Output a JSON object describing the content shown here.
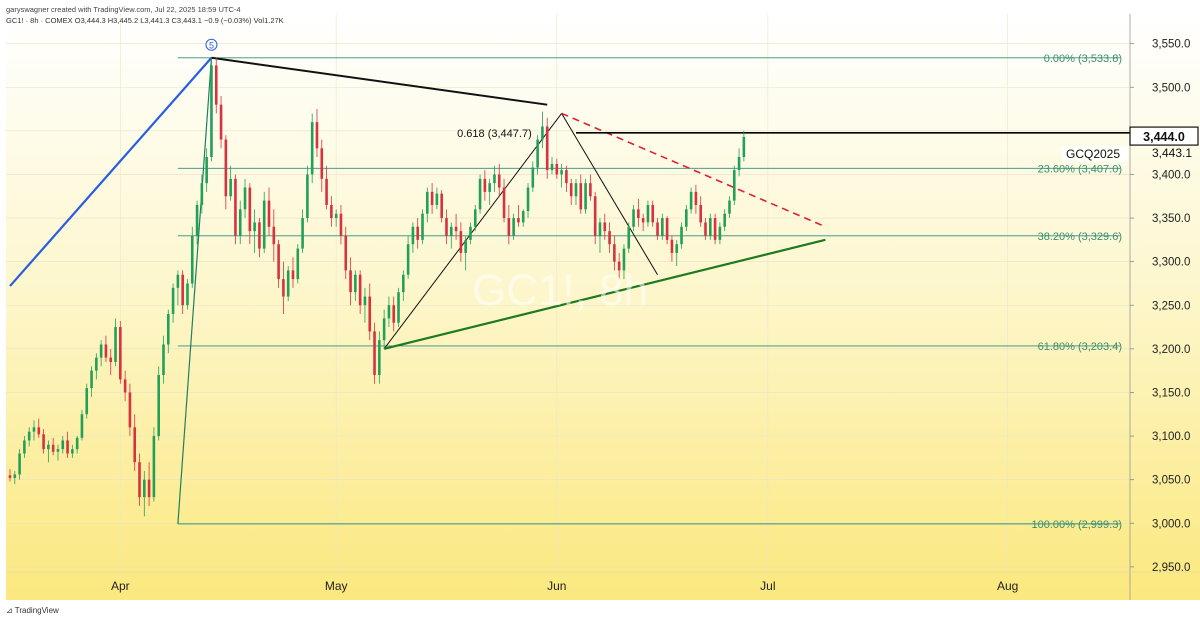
{
  "header": {
    "line1": "garyswagner created with TradingView.com, Jul 22, 2025 18:59 UTC-4",
    "line2": "GC1! · 8h · COMEX  O3,444.3  H3,445.2  L3,441.3  C3,443.1  −0.9 (−0.03%)  Vol1.27K"
  },
  "footer": {
    "logo": "TradingView"
  },
  "chart_data": {
    "type": "candlestick",
    "watermark": "GC1!, 8h",
    "price_axis": {
      "ticks": [
        "3,550.0",
        "3,500.0",
        "3,450.0",
        "3,400.0",
        "3,350.0",
        "3,300.0",
        "3,250.0",
        "3,200.0",
        "3,150.0",
        "3,100.0",
        "3,050.0",
        "3,000.0",
        "2,950.0"
      ],
      "tick_values": [
        3550,
        3500,
        3450,
        3400,
        3350,
        3300,
        3250,
        3200,
        3150,
        3100,
        3050,
        3000,
        2950
      ],
      "ylim": [
        2912,
        3584
      ],
      "last_price_label": "3,444.0",
      "last_price": 3444.0,
      "secondary_label": "3,443.1",
      "secondary_price": 3443.1,
      "contract_label": "GCQ2025"
    },
    "time_axis": {
      "labels": [
        "Apr",
        "May",
        "Jun",
        "Jul",
        "Aug"
      ],
      "label_bar_index": [
        23,
        68,
        114,
        158,
        208
      ],
      "total_bars": 232
    },
    "fibonacci": [
      {
        "label": "0.00% (3,533.8)",
        "price": 3533.8
      },
      {
        "label": "23.60% (3,407.0)",
        "price": 3407.0
      },
      {
        "label": "38.20% (3,329.6)",
        "price": 3329.6
      },
      {
        "label": "61.80% (3,203.4)",
        "price": 3203.4
      },
      {
        "label": "100.00% (2,999.3)",
        "price": 2999.3
      }
    ],
    "retracement_label": "0.618 (3,447.7)",
    "retracement_price": 3447.7,
    "wave_label": "5",
    "candles_ohlc": [
      [
        3055,
        3062,
        3048,
        3052
      ],
      [
        3052,
        3060,
        3045,
        3056
      ],
      [
        3056,
        3085,
        3050,
        3080
      ],
      [
        3080,
        3100,
        3075,
        3095
      ],
      [
        3095,
        3110,
        3088,
        3105
      ],
      [
        3105,
        3118,
        3095,
        3110
      ],
      [
        3110,
        3120,
        3098,
        3102
      ],
      [
        3102,
        3108,
        3080,
        3085
      ],
      [
        3085,
        3095,
        3070,
        3090
      ],
      [
        3090,
        3098,
        3078,
        3082
      ],
      [
        3082,
        3090,
        3072,
        3085
      ],
      [
        3085,
        3100,
        3080,
        3095
      ],
      [
        3095,
        3105,
        3075,
        3080
      ],
      [
        3080,
        3090,
        3075,
        3085
      ],
      [
        3085,
        3100,
        3080,
        3098
      ],
      [
        3098,
        3130,
        3095,
        3125
      ],
      [
        3125,
        3160,
        3120,
        3155
      ],
      [
        3155,
        3180,
        3145,
        3175
      ],
      [
        3175,
        3195,
        3165,
        3190
      ],
      [
        3190,
        3210,
        3180,
        3205
      ],
      [
        3205,
        3215,
        3185,
        3190
      ],
      [
        3190,
        3200,
        3170,
        3185
      ],
      [
        3185,
        3235,
        3180,
        3225
      ],
      [
        3225,
        3232,
        3160,
        3165
      ],
      [
        3165,
        3175,
        3140,
        3150
      ],
      [
        3150,
        3160,
        3100,
        3110
      ],
      [
        3110,
        3125,
        3060,
        3070
      ],
      [
        3070,
        3080,
        3020,
        3030
      ],
      [
        3030,
        3060,
        3008,
        3050
      ],
      [
        3050,
        3070,
        3020,
        3030
      ],
      [
        3030,
        3110,
        3025,
        3100
      ],
      [
        3100,
        3180,
        3095,
        3170
      ],
      [
        3170,
        3215,
        3160,
        3205
      ],
      [
        3205,
        3245,
        3195,
        3240
      ],
      [
        3240,
        3275,
        3230,
        3270
      ],
      [
        3270,
        3290,
        3250,
        3285
      ],
      [
        3285,
        3290,
        3240,
        3250
      ],
      [
        3250,
        3280,
        3245,
        3275
      ],
      [
        3275,
        3340,
        3270,
        3330
      ],
      [
        3330,
        3370,
        3320,
        3365
      ],
      [
        3365,
        3400,
        3355,
        3390
      ],
      [
        3390,
        3430,
        3380,
        3420
      ],
      [
        3420,
        3530,
        3415,
        3525
      ],
      [
        3525,
        3534,
        3470,
        3480
      ],
      [
        3480,
        3490,
        3430,
        3440
      ],
      [
        3440,
        3445,
        3360,
        3375
      ],
      [
        3375,
        3410,
        3370,
        3395
      ],
      [
        3395,
        3400,
        3320,
        3330
      ],
      [
        3330,
        3370,
        3320,
        3360
      ],
      [
        3360,
        3395,
        3350,
        3385
      ],
      [
        3385,
        3390,
        3320,
        3335
      ],
      [
        3335,
        3360,
        3310,
        3345
      ],
      [
        3345,
        3350,
        3305,
        3315
      ],
      [
        3315,
        3380,
        3310,
        3370
      ],
      [
        3370,
        3385,
        3330,
        3340
      ],
      [
        3340,
        3360,
        3300,
        3320
      ],
      [
        3320,
        3325,
        3270,
        3280
      ],
      [
        3280,
        3300,
        3240,
        3260
      ],
      [
        3260,
        3295,
        3255,
        3290
      ],
      [
        3290,
        3305,
        3270,
        3280
      ],
      [
        3280,
        3320,
        3275,
        3315
      ],
      [
        3315,
        3360,
        3310,
        3350
      ],
      [
        3350,
        3410,
        3345,
        3400
      ],
      [
        3400,
        3470,
        3390,
        3460
      ],
      [
        3460,
        3475,
        3420,
        3430
      ],
      [
        3430,
        3440,
        3380,
        3395
      ],
      [
        3395,
        3410,
        3360,
        3365
      ],
      [
        3365,
        3375,
        3340,
        3350
      ],
      [
        3350,
        3360,
        3340,
        3355
      ],
      [
        3355,
        3365,
        3320,
        3330
      ],
      [
        3330,
        3340,
        3280,
        3290
      ],
      [
        3290,
        3305,
        3250,
        3265
      ],
      [
        3265,
        3290,
        3255,
        3285
      ],
      [
        3285,
        3290,
        3240,
        3250
      ],
      [
        3250,
        3270,
        3230,
        3260
      ],
      [
        3260,
        3275,
        3210,
        3220
      ],
      [
        3220,
        3230,
        3160,
        3170
      ],
      [
        3170,
        3220,
        3160,
        3210
      ],
      [
        3210,
        3245,
        3200,
        3235
      ],
      [
        3235,
        3260,
        3225,
        3250
      ],
      [
        3250,
        3260,
        3220,
        3230
      ],
      [
        3230,
        3270,
        3225,
        3265
      ],
      [
        3265,
        3290,
        3255,
        3285
      ],
      [
        3285,
        3330,
        3280,
        3320
      ],
      [
        3320,
        3345,
        3310,
        3340
      ],
      [
        3340,
        3350,
        3315,
        3325
      ],
      [
        3325,
        3360,
        3320,
        3355
      ],
      [
        3355,
        3385,
        3345,
        3380
      ],
      [
        3380,
        3390,
        3355,
        3365
      ],
      [
        3365,
        3385,
        3360,
        3378
      ],
      [
        3378,
        3382,
        3345,
        3350
      ],
      [
        3350,
        3360,
        3320,
        3330
      ],
      [
        3330,
        3345,
        3315,
        3340
      ],
      [
        3340,
        3355,
        3325,
        3335
      ],
      [
        3335,
        3345,
        3300,
        3310
      ],
      [
        3310,
        3330,
        3290,
        3325
      ],
      [
        3325,
        3345,
        3320,
        3340
      ],
      [
        3340,
        3365,
        3335,
        3360
      ],
      [
        3360,
        3400,
        3355,
        3395
      ],
      [
        3395,
        3405,
        3370,
        3380
      ],
      [
        3380,
        3395,
        3365,
        3390
      ],
      [
        3390,
        3410,
        3380,
        3400
      ],
      [
        3400,
        3412,
        3375,
        3385
      ],
      [
        3385,
        3395,
        3345,
        3350
      ],
      [
        3350,
        3365,
        3320,
        3330
      ],
      [
        3330,
        3355,
        3325,
        3350
      ],
      [
        3350,
        3365,
        3340,
        3345
      ],
      [
        3345,
        3360,
        3340,
        3358
      ],
      [
        3358,
        3390,
        3350,
        3385
      ],
      [
        3385,
        3415,
        3380,
        3408
      ],
      [
        3408,
        3445,
        3400,
        3440
      ],
      [
        3440,
        3472,
        3430,
        3455
      ],
      [
        3455,
        3465,
        3395,
        3405
      ],
      [
        3405,
        3420,
        3400,
        3412
      ],
      [
        3412,
        3418,
        3395,
        3400
      ],
      [
        3400,
        3412,
        3385,
        3405
      ],
      [
        3405,
        3410,
        3380,
        3390
      ],
      [
        3390,
        3395,
        3365,
        3375
      ],
      [
        3375,
        3395,
        3365,
        3390
      ],
      [
        3390,
        3400,
        3355,
        3360
      ],
      [
        3360,
        3395,
        3355,
        3390
      ],
      [
        3390,
        3400,
        3370,
        3375
      ],
      [
        3375,
        3380,
        3320,
        3330
      ],
      [
        3330,
        3350,
        3310,
        3345
      ],
      [
        3345,
        3355,
        3325,
        3335
      ],
      [
        3335,
        3345,
        3310,
        3320
      ],
      [
        3320,
        3330,
        3290,
        3300
      ],
      [
        3300,
        3310,
        3280,
        3290
      ],
      [
        3290,
        3320,
        3280,
        3315
      ],
      [
        3315,
        3345,
        3310,
        3340
      ],
      [
        3340,
        3365,
        3335,
        3360
      ],
      [
        3360,
        3372,
        3340,
        3350
      ],
      [
        3350,
        3355,
        3335,
        3345
      ],
      [
        3345,
        3370,
        3340,
        3365
      ],
      [
        3365,
        3370,
        3340,
        3345
      ],
      [
        3345,
        3350,
        3325,
        3330
      ],
      [
        3330,
        3355,
        3325,
        3350
      ],
      [
        3350,
        3352,
        3320,
        3325
      ],
      [
        3325,
        3330,
        3300,
        3310
      ],
      [
        3310,
        3325,
        3295,
        3320
      ],
      [
        3320,
        3345,
        3315,
        3340
      ],
      [
        3340,
        3365,
        3335,
        3360
      ],
      [
        3360,
        3385,
        3355,
        3380
      ],
      [
        3380,
        3388,
        3355,
        3365
      ],
      [
        3365,
        3375,
        3340,
        3345
      ],
      [
        3345,
        3350,
        3325,
        3330
      ],
      [
        3330,
        3355,
        3325,
        3350
      ],
      [
        3350,
        3355,
        3320,
        3325
      ],
      [
        3325,
        3345,
        3320,
        3340
      ],
      [
        3340,
        3360,
        3335,
        3355
      ],
      [
        3355,
        3375,
        3350,
        3370
      ],
      [
        3370,
        3410,
        3365,
        3405
      ],
      [
        3405,
        3430,
        3398,
        3420
      ],
      [
        3420,
        3450,
        3415,
        3443
      ]
    ]
  }
}
